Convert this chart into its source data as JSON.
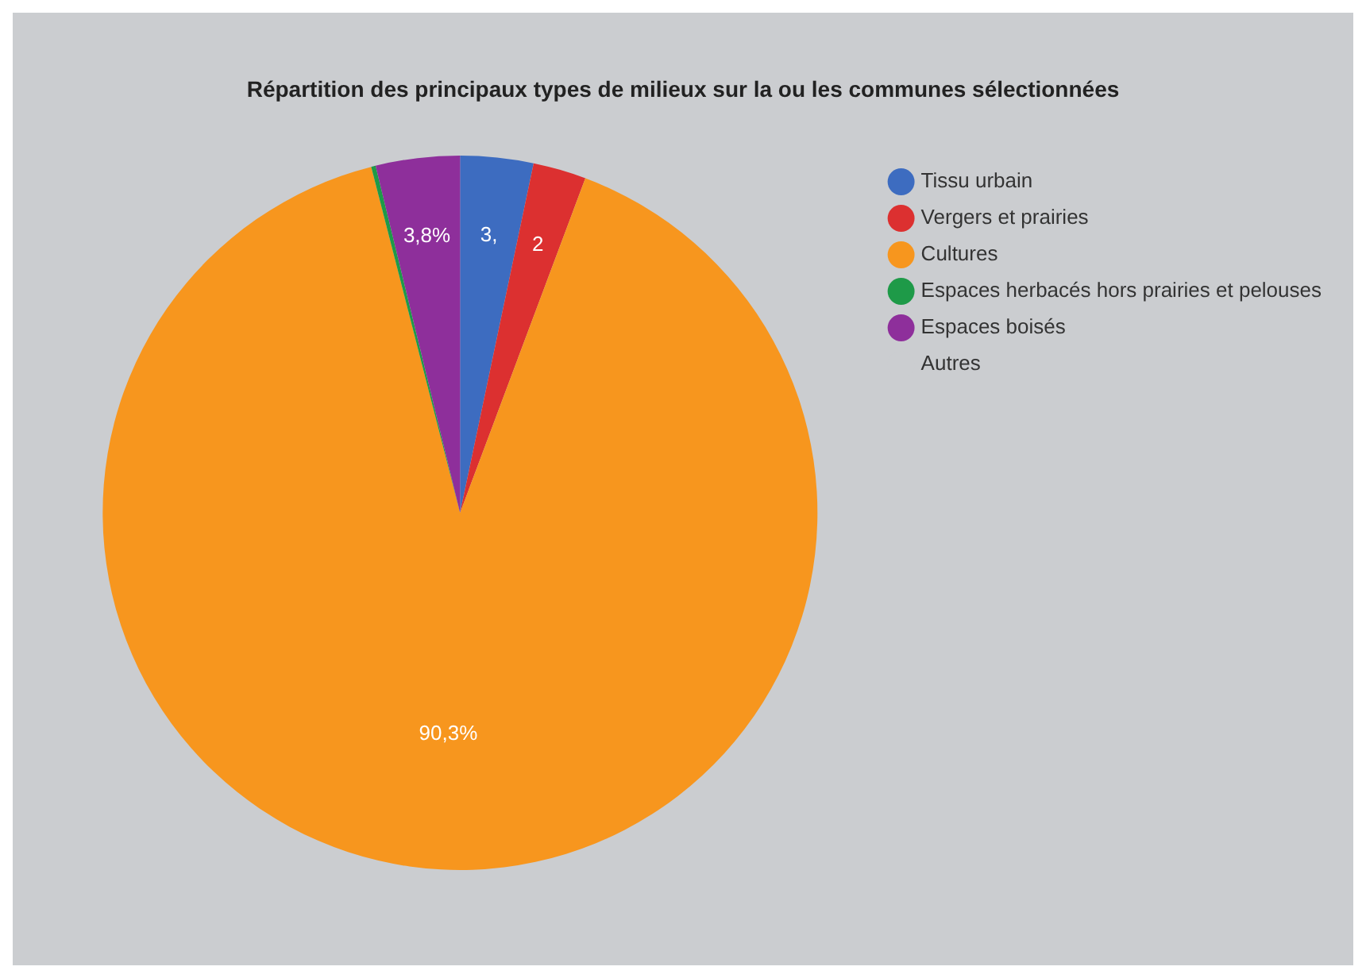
{
  "chart_data": {
    "type": "pie",
    "title": "Répartition des principaux types de milieux sur la ou les communes sélectionnées",
    "categories": [
      "Tissu urbain",
      "Vergers et prairies",
      "Cultures",
      "Espaces herbacés hors prairies et pelouses",
      "Espaces boisés",
      "Autres"
    ],
    "values": [
      3.3,
      2.4,
      90.3,
      0.2,
      3.8,
      0
    ],
    "value_labels": [
      "3,",
      "2",
      "90,3%",
      null,
      "3,8%",
      null
    ],
    "colors": [
      "#3d6cc0",
      "#dc3030",
      "#f7961e",
      "#1e9a48",
      "#8e2f9b",
      "#cbcdd0"
    ],
    "legend": "right"
  }
}
